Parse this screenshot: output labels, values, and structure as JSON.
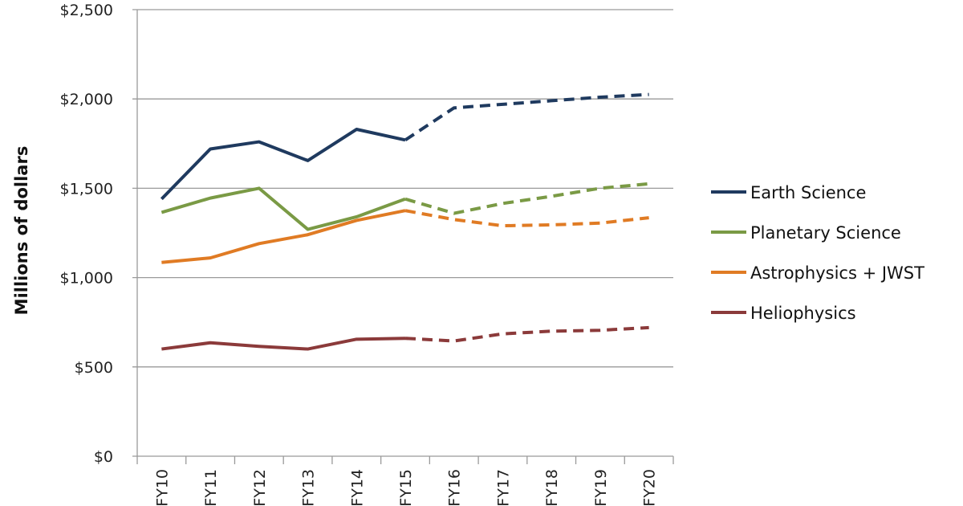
{
  "chart_data": {
    "type": "line",
    "title": "",
    "xlabel": "",
    "ylabel": "Millions of dollars",
    "ylim": [
      0,
      2500
    ],
    "yticks": [
      "$0",
      "$500",
      "$1,000",
      "$1,500",
      "$2,000",
      "$2,500"
    ],
    "ytick_values": [
      0,
      500,
      1000,
      1500,
      2000,
      2500
    ],
    "grid": true,
    "legend_position": "right",
    "categories": [
      "FY10",
      "FY11",
      "FY12",
      "FY13",
      "FY14",
      "FY15",
      "FY16",
      "FY17",
      "FY18",
      "FY19",
      "FY20"
    ],
    "projection_starts_at": "FY15",
    "series": [
      {
        "name": "Earth Science",
        "color": "#1f3a5f",
        "values": [
          1440,
          1720,
          1760,
          1655,
          1830,
          1770,
          1950,
          1970,
          1990,
          2010,
          2025
        ]
      },
      {
        "name": "Planetary Science",
        "color": "#7a9a45",
        "values": [
          1365,
          1445,
          1500,
          1270,
          1340,
          1440,
          1360,
          1415,
          1455,
          1500,
          1525
        ]
      },
      {
        "name": "Astrophysics + JWST",
        "color": "#e07b24",
        "values": [
          1085,
          1110,
          1190,
          1240,
          1320,
          1375,
          1325,
          1290,
          1295,
          1305,
          1335
        ]
      },
      {
        "name": "Heliophysics",
        "color": "#8b3a3a",
        "values": [
          600,
          635,
          615,
          600,
          655,
          660,
          645,
          685,
          700,
          705,
          720
        ]
      }
    ]
  }
}
